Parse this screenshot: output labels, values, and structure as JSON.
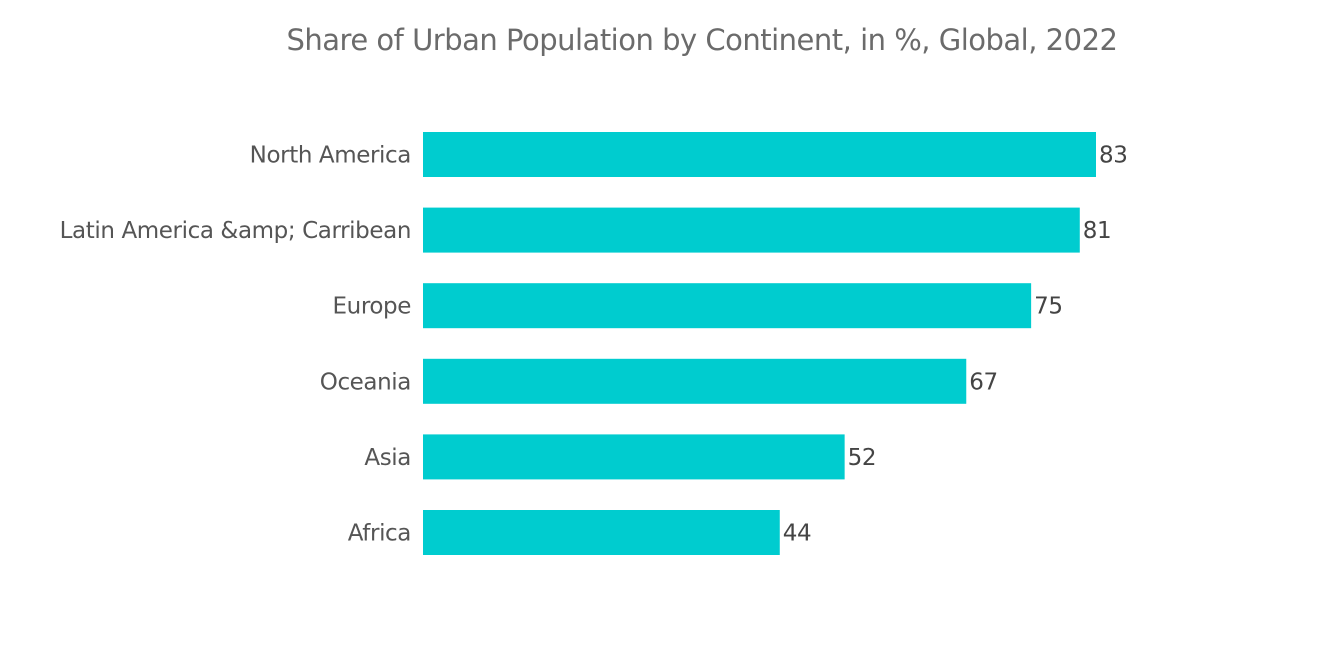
{
  "chart_data": {
    "type": "bar",
    "orientation": "horizontal",
    "title": "Share of Urban Population by Continent, in %, Global, 2022",
    "xlabel": "",
    "ylabel": "",
    "categories": [
      "North America",
      "Latin America &amp; Carribean",
      "Europe",
      "Oceania",
      "Asia",
      "Africa"
    ],
    "values": [
      83,
      81,
      75,
      67,
      52,
      44
    ],
    "data_labels": [
      "83",
      "81",
      "75",
      "67",
      "52",
      "44"
    ],
    "xlim": [
      0,
      83
    ],
    "grid": false,
    "legend": "none",
    "bar_color": "#00cccf"
  }
}
